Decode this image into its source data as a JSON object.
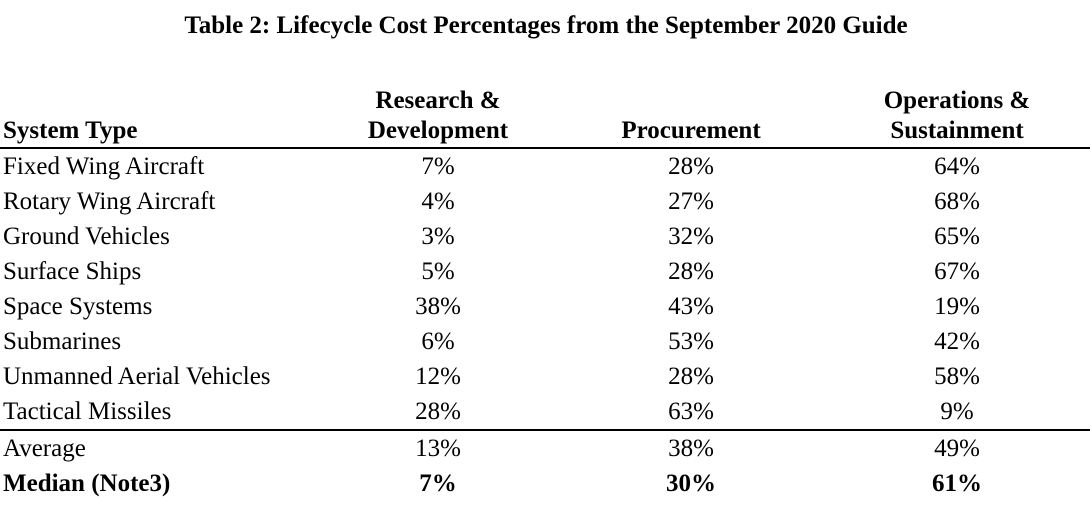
{
  "title": "Table 2: Lifecycle Cost Percentages from the September 2020 Guide",
  "columns": {
    "system_type": "System Type",
    "rd_line1": "Research &",
    "rd_line2": "Development",
    "procurement": "Procurement",
    "os_line1": "Operations &",
    "os_line2": "Sustainment"
  },
  "rows": [
    {
      "system": "Fixed Wing Aircraft",
      "rd": "7%",
      "procurement": "28%",
      "os": "64%"
    },
    {
      "system": "Rotary Wing Aircraft",
      "rd": "4%",
      "procurement": "27%",
      "os": "68%"
    },
    {
      "system": "Ground Vehicles",
      "rd": "3%",
      "procurement": "32%",
      "os": "65%"
    },
    {
      "system": "Surface Ships",
      "rd": "5%",
      "procurement": "28%",
      "os": "67%"
    },
    {
      "system": "Space Systems",
      "rd": "38%",
      "procurement": "43%",
      "os": "19%"
    },
    {
      "system": "Submarines",
      "rd": "6%",
      "procurement": "53%",
      "os": "42%"
    },
    {
      "system": "Unmanned Aerial Vehicles",
      "rd": "12%",
      "procurement": "28%",
      "os": "58%"
    },
    {
      "system": "Tactical Missiles",
      "rd": "28%",
      "procurement": "63%",
      "os": "9%"
    }
  ],
  "summary": {
    "average": {
      "label": "Average",
      "rd": "13%",
      "procurement": "38%",
      "os": "49%"
    },
    "median": {
      "label": "Median (Note3)",
      "rd": "7%",
      "procurement": "30%",
      "os": "61%"
    }
  }
}
